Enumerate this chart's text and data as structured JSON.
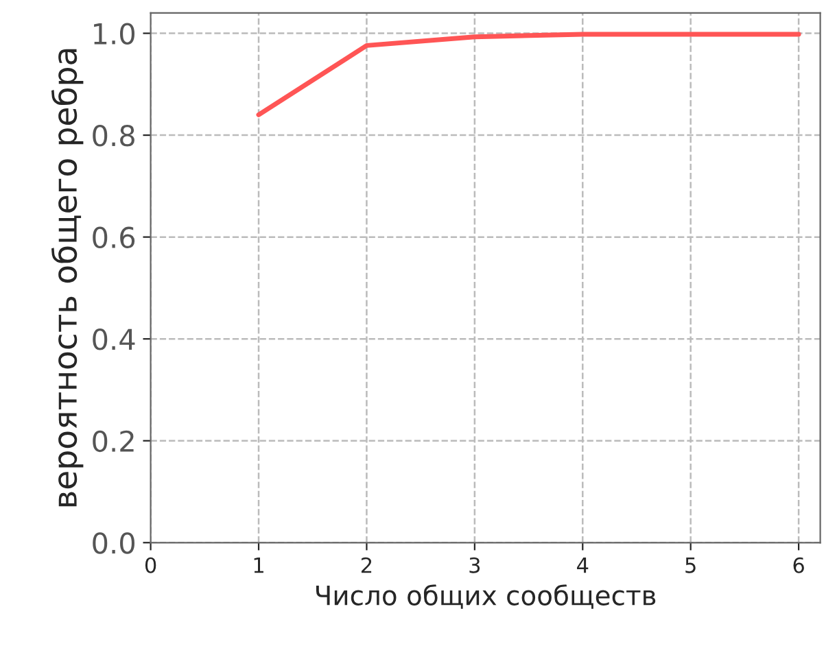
{
  "chart_data": {
    "type": "line",
    "xlabel": "Число общих сообществ",
    "ylabel": "вероятность общего ребра",
    "x": [
      1,
      2,
      3,
      4,
      5,
      6
    ],
    "series": [
      {
        "color": "#ff5555",
        "values": [
          0.84,
          0.976,
          0.993,
          0.998,
          0.998,
          0.998
        ]
      }
    ],
    "xlim": [
      0,
      6.2
    ],
    "xticks": [
      0,
      1,
      2,
      3,
      4,
      5,
      6
    ],
    "ylim": [
      0,
      1.04
    ],
    "yticks": [
      {
        "value": 0,
        "label": "0.0"
      },
      0.2,
      0.4,
      0.6,
      0.8,
      {
        "value": 1,
        "label": "1.0"
      }
    ],
    "grid": true,
    "marker": "none",
    "line_style": "solid"
  }
}
